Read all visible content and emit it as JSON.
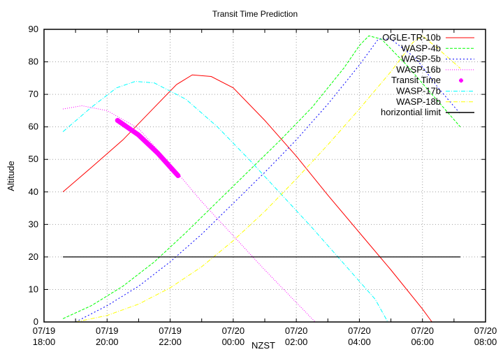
{
  "chart_data": {
    "type": "line",
    "title": "Transit Time Prediction",
    "xlabel": "NZST",
    "ylabel": "Altitude",
    "ylim": [
      0,
      90
    ],
    "yticks": [
      0,
      10,
      20,
      30,
      40,
      50,
      60,
      70,
      80,
      90
    ],
    "xlim_hours_from_1800": [
      0,
      14
    ],
    "xticks": [
      {
        "h": 0,
        "date": "07/19",
        "time": "18:00"
      },
      {
        "h": 2,
        "date": "07/19",
        "time": "20:00"
      },
      {
        "h": 4,
        "date": "07/19",
        "time": "22:00"
      },
      {
        "h": 6,
        "date": "07/20",
        "time": "00:00"
      },
      {
        "h": 8,
        "date": "07/20",
        "time": "02:00"
      },
      {
        "h": 10,
        "date": "07/20",
        "time": "04:00"
      },
      {
        "h": 12,
        "date": "07/20",
        "time": "06:00"
      },
      {
        "h": 14,
        "date": "07/20",
        "time": "08:00"
      }
    ],
    "grid": true,
    "legend_position": "top-right",
    "series": [
      {
        "name": "OGLE-TR-10b",
        "color": "#ff0000",
        "dash": "",
        "points": [
          [
            0.6,
            40
          ],
          [
            1.5,
            47.5
          ],
          [
            2.5,
            56
          ],
          [
            3.5,
            66
          ],
          [
            4.2,
            73
          ],
          [
            4.7,
            76
          ],
          [
            5.3,
            75.5
          ],
          [
            6,
            72
          ],
          [
            7,
            62
          ],
          [
            8,
            51
          ],
          [
            9,
            39
          ],
          [
            10,
            27.5
          ],
          [
            11,
            16
          ],
          [
            12,
            4
          ],
          [
            12.3,
            0
          ]
        ]
      },
      {
        "name": "WASP-4b",
        "color": "#00ff00",
        "dash": "4,2",
        "points": [
          [
            0.6,
            1
          ],
          [
            1.5,
            5
          ],
          [
            2.5,
            11
          ],
          [
            3.5,
            18.5
          ],
          [
            4.5,
            27.5
          ],
          [
            5.5,
            37
          ],
          [
            6.5,
            46.5
          ],
          [
            7.5,
            56
          ],
          [
            8.5,
            66
          ],
          [
            9.5,
            78
          ],
          [
            10,
            85
          ],
          [
            10.3,
            88
          ],
          [
            10.7,
            87
          ],
          [
            11.5,
            79
          ],
          [
            12.3,
            70
          ],
          [
            13.2,
            60
          ]
        ]
      },
      {
        "name": "WASP-5b",
        "color": "#0000ff",
        "dash": "2,3",
        "points": [
          [
            1.0,
            0
          ],
          [
            2,
            5
          ],
          [
            3,
            11
          ],
          [
            4,
            18.5
          ],
          [
            5,
            27
          ],
          [
            6,
            36.5
          ],
          [
            7,
            46
          ],
          [
            8,
            56
          ],
          [
            9,
            67
          ],
          [
            10,
            79
          ],
          [
            10.6,
            87
          ],
          [
            11,
            87
          ],
          [
            11.8,
            81
          ],
          [
            12.5,
            72
          ],
          [
            13.2,
            64
          ]
        ]
      },
      {
        "name": "WASP-16b",
        "color": "#ff00ff",
        "dash": "1,2",
        "points": [
          [
            0.6,
            65.5
          ],
          [
            1.2,
            66.5
          ],
          [
            2,
            65
          ],
          [
            3,
            59.5
          ],
          [
            4,
            48.5
          ],
          [
            5,
            37
          ],
          [
            6,
            26.5
          ],
          [
            7,
            16
          ],
          [
            8,
            6
          ],
          [
            8.6,
            0
          ]
        ]
      },
      {
        "name": "WASP-17b",
        "color": "#00ffff",
        "dash": "6,2,1,2",
        "points": [
          [
            0.6,
            58.5
          ],
          [
            1.5,
            66
          ],
          [
            2.3,
            72
          ],
          [
            2.9,
            74
          ],
          [
            3.5,
            73.5
          ],
          [
            4.5,
            68.5
          ],
          [
            5.5,
            60
          ],
          [
            6.5,
            50
          ],
          [
            7.5,
            39.5
          ],
          [
            8.5,
            29
          ],
          [
            9.5,
            18
          ],
          [
            10.5,
            7
          ],
          [
            10.9,
            0
          ]
        ]
      },
      {
        "name": "WASP-18b",
        "color": "#ffff00",
        "dash": "6,2,1,2",
        "points": [
          [
            1.0,
            0
          ],
          [
            2,
            2
          ],
          [
            3,
            5.5
          ],
          [
            4,
            10.5
          ],
          [
            5,
            17
          ],
          [
            6,
            25
          ],
          [
            7,
            34
          ],
          [
            8,
            44
          ],
          [
            9,
            54.5
          ],
          [
            10,
            65.5
          ],
          [
            11,
            77
          ],
          [
            11.7,
            86
          ],
          [
            12,
            88
          ],
          [
            12.5,
            84
          ],
          [
            13.2,
            78
          ]
        ]
      },
      {
        "name": "horizontial limit",
        "color": "#000000",
        "dash": "",
        "points": [
          [
            0.6,
            20
          ],
          [
            13.2,
            20
          ]
        ]
      }
    ],
    "transit": {
      "name": "Transit Time",
      "color": "#ff00ff",
      "marker": "plus",
      "points": [
        [
          2.33,
          62
        ],
        [
          3,
          57.5
        ],
        [
          3.6,
          52
        ],
        [
          4.25,
          45
        ]
      ]
    },
    "legend_order": [
      "OGLE-TR-10b",
      "WASP-4b",
      "WASP-5b",
      "WASP-16b",
      "Transit Time",
      "WASP-17b",
      "WASP-18b",
      "horizontial limit"
    ]
  }
}
